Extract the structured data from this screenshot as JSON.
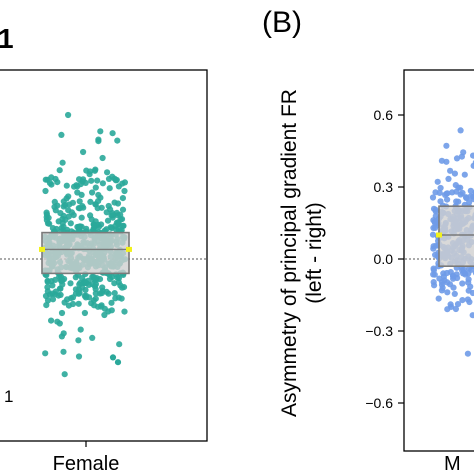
{
  "panels": {
    "left": {
      "label_fragment": "1",
      "stat_fragment": "1"
    },
    "right": {
      "label": "(B)"
    }
  },
  "colors": {
    "female_points": "#2aa89a",
    "male_points": "#6f9be8",
    "box_fill": "#cfcfcf",
    "box_edge": "#7a7a7a",
    "mean_marker": "#f2f21a"
  },
  "chart_data": [
    {
      "type": "scatter",
      "subtype": "box-with-jittered-points",
      "panel": "A",
      "categories": [
        "Female"
      ],
      "xlabel": "",
      "ylabel": "",
      "ylim": [
        -0.72,
        0.7
      ],
      "reference_line": 0.0,
      "box": {
        "q1": -0.06,
        "median": 0.04,
        "q3": 0.11,
        "mean": 0.04
      },
      "point_range": [
        -0.48,
        0.6
      ],
      "outliers_low": [
        -0.41,
        -0.43
      ],
      "grid": false
    },
    {
      "type": "scatter",
      "subtype": "box-with-jittered-points",
      "panel": "B",
      "categories": [
        "M"
      ],
      "xlabel": "",
      "ylabel": "Asymmetry of principal gradient FR (left - right)",
      "ylabel_lines": [
        "Asymmetry of principal gradient FR",
        "(left - right)"
      ],
      "ylim": [
        -0.72,
        0.7
      ],
      "yticks": [
        0.6,
        0.3,
        0.0,
        -0.3,
        -0.6
      ],
      "yticklabels": [
        "0.6",
        "0.3",
        "0.0",
        "−0.3",
        "−0.6"
      ],
      "reference_line": 0.0,
      "box": {
        "q1": -0.03,
        "median": 0.1,
        "q3": 0.22,
        "mean": 0.1
      },
      "point_range": [
        -0.42,
        0.55
      ],
      "grid": false
    }
  ]
}
